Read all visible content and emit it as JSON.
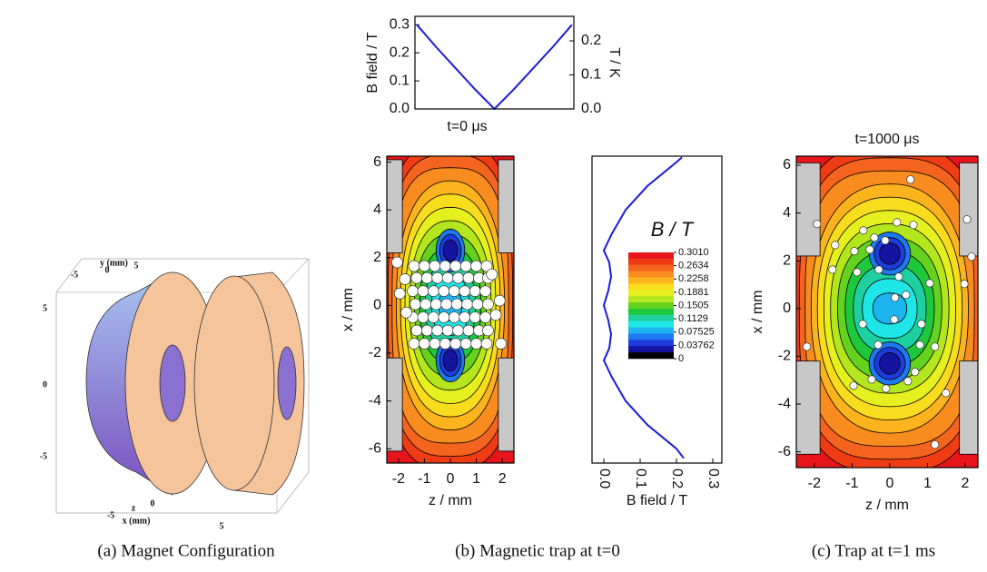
{
  "chart_data": [
    {
      "type": "line",
      "xlabel": "t=0 μs",
      "ylabel": "B field / T",
      "y2label": "T / K",
      "color": "#1a1adc",
      "x": [
        -2,
        -1.5,
        -1,
        -0.5,
        0,
        0.5,
        1,
        1.5,
        2
      ],
      "values": [
        0.3,
        0.22,
        0.145,
        0.07,
        0,
        0.07,
        0.145,
        0.22,
        0.3
      ],
      "xlim": [
        -2.05,
        2.05
      ],
      "ylim": [
        0,
        0.33
      ],
      "yticks": [
        {
          "value": 0,
          "label": "0.0"
        },
        0.1,
        0.2,
        0.3
      ],
      "y2lim": [
        0,
        0.272
      ],
      "y2ticks": [
        {
          "value": 0,
          "label": "0.0"
        },
        0.1,
        0.2
      ]
    },
    {
      "type": "contour",
      "xlabel": "z / mm",
      "ylabel": "x / mm",
      "xlim": [
        -2.45,
        2.45
      ],
      "ylim": [
        -6.6,
        6.25
      ],
      "xticks": [
        -2,
        -1,
        0,
        1,
        2
      ],
      "yticks": [
        -6,
        -4,
        -2,
        0,
        2,
        4,
        6
      ],
      "colors": [
        "#e8141c",
        "#f03c14",
        "#f5641e",
        "#f88c1e",
        "#fbb41e",
        "#fadc1e",
        "#e6f01e",
        "#b4e61e",
        "#64d21e",
        "#1ec83c",
        "#1ecfa0",
        "#1ee6e6",
        "#1eb4f0",
        "#1e78f0",
        "#1e3cdc",
        "#1414a0",
        "#000000"
      ],
      "points": {
        "x": [
          -1.4,
          -1.0,
          -0.6,
          -0.2,
          0.2,
          0.6,
          1.0,
          1.4,
          -1.3,
          -0.9,
          -0.5,
          -0.1,
          0.3,
          0.7,
          1.1,
          1.45,
          -1.45,
          -1.05,
          -0.65,
          -0.25,
          0.15,
          0.55,
          0.95,
          1.35,
          -1.35,
          -0.95,
          -0.55,
          -0.15,
          0.25,
          0.65,
          1.05,
          1.45,
          -1.45,
          -1.05,
          -0.65,
          -0.25,
          0.15,
          0.55,
          0.95,
          1.35,
          -1.3,
          -0.9,
          -0.5,
          -0.1,
          0.3,
          0.7,
          1.1,
          1.45,
          -1.4,
          -1.0,
          -0.6,
          -0.2,
          0.2,
          0.6,
          1.0,
          1.4,
          -2.05,
          -1.95,
          -1.75,
          -1.7,
          1.9,
          1.75,
          1.95,
          1.6
        ],
        "values": [
          -1.6,
          -1.6,
          -1.6,
          -1.6,
          -1.6,
          -1.6,
          -1.6,
          -1.6,
          -1.05,
          -1.05,
          -1.05,
          -1.05,
          -1.05,
          -1.05,
          -1.05,
          -1.05,
          -0.5,
          -0.5,
          -0.5,
          -0.5,
          -0.5,
          -0.5,
          -0.5,
          -0.5,
          0.05,
          0.05,
          0.05,
          0.05,
          0.05,
          0.05,
          0.05,
          0.05,
          0.6,
          0.6,
          0.6,
          0.6,
          0.6,
          0.6,
          0.6,
          0.6,
          1.15,
          1.15,
          1.15,
          1.15,
          1.15,
          1.15,
          1.15,
          1.15,
          1.65,
          1.65,
          1.65,
          1.65,
          1.65,
          1.65,
          1.65,
          1.65,
          1.8,
          0.5,
          1.1,
          -0.3,
          0.2,
          -0.4,
          -1.6,
          1.3
        ]
      }
    },
    {
      "type": "profile",
      "orientation": "horizontal",
      "xlabel": "B field / T",
      "color": "#1a1adc",
      "x": [
        -6.4,
        -6,
        -5,
        -4,
        -3,
        -2.3,
        -1.8,
        -1.2,
        -0.6,
        0,
        0.6,
        1.2,
        1.8,
        2.3,
        3,
        4,
        5,
        6,
        6.2
      ],
      "values": [
        0.22,
        0.2,
        0.12,
        0.06,
        0.022,
        0,
        0.015,
        0.02,
        0.012,
        0,
        0.012,
        0.02,
        0.015,
        0,
        0.022,
        0.06,
        0.12,
        0.2,
        0.215
      ],
      "xlim": [
        -6.6,
        6.25
      ],
      "ylim": [
        -0.0325,
        0.325
      ],
      "yticks": [
        {
          "value": 0,
          "label": "0.0"
        },
        0.1,
        0.2,
        0.3
      ],
      "colorbar": {
        "title": "B / T",
        "colors": [
          "#e8141c",
          "#f03c14",
          "#f5641e",
          "#f88c1e",
          "#fbb41e",
          "#fadc1e",
          "#e6f01e",
          "#b4e61e",
          "#64d21e",
          "#1ec83c",
          "#1ecfa0",
          "#1ee6e6",
          "#1eb4f0",
          "#1e78f0",
          "#1e3cdc",
          "#1414a0",
          "#000000"
        ],
        "lim": [
          0,
          0.301
        ],
        "ticks": [
          {
            "value": 0.301,
            "label": "0.3010"
          },
          0.2634,
          0.2258,
          0.1881,
          0.1505,
          0.1129,
          0.07525,
          0.03762,
          0
        ]
      }
    },
    {
      "type": "contour",
      "title": "t=1000 μs",
      "xlabel": "z / mm",
      "ylabel": "x / mm",
      "xlim": [
        -2.48,
        2.34
      ],
      "ylim": [
        -6.66,
        6.38
      ],
      "xticks": [
        -2,
        -1,
        0,
        1,
        2
      ],
      "yticks": [
        -6,
        -4,
        -2,
        0,
        2,
        4,
        6
      ],
      "colors": [
        "#e8141c",
        "#f03c14",
        "#f5641e",
        "#f88c1e",
        "#fbb41e",
        "#fadc1e",
        "#e6f01e",
        "#b4e61e",
        "#64d21e",
        "#1ec83c",
        "#1ecfa0",
        "#1ee6e6",
        "#1eb4f0",
        "#1e78f0",
        "#1e3cdc",
        "#1414a0",
        "#000000"
      ],
      "points": {
        "x": [
          0.55,
          -1.93,
          2.05,
          -1.45,
          -0.7,
          -0.41,
          0.19,
          0.63,
          -0.94,
          -0.53,
          -0.12,
          2.17,
          -1.52,
          -0.87,
          -0.29,
          0.24,
          1.06,
          1.98,
          0.43,
          0.14,
          0.12,
          -0.72,
          0.84,
          -0.31,
          0.8,
          -2.2,
          1.2,
          -0.48,
          -0.96,
          0.67,
          0.48,
          -0.1,
          1.49,
          1.2
        ],
        "values": [
          5.4,
          3.54,
          3.73,
          2.66,
          3.27,
          2.97,
          3.61,
          3.5,
          2.4,
          2.47,
          2.85,
          2.17,
          1.63,
          1.52,
          1.63,
          1.33,
          1.06,
          1.03,
          0.57,
          0.46,
          -0.46,
          -0.65,
          -0.65,
          -1.52,
          -1.52,
          -1.6,
          -1.6,
          -2.97,
          -3.23,
          -2.66,
          -3.04,
          -3.35,
          -3.54,
          -5.7
        ]
      }
    }
  ],
  "magnet_figure": {
    "top_axis_label": "y (mm)",
    "top_ticks": [
      -5,
      0,
      5
    ],
    "left_ticks": [
      5,
      0,
      -5
    ],
    "bottom_ticks": [
      -5,
      0,
      5
    ],
    "depth_label": "z",
    "bottom_axis_label": "x (mm)"
  },
  "captions": [
    "(a)  Magnet Configuration",
    "(b)  Magnetic trap at t=0",
    "(c)  Trap at t=1 ms"
  ]
}
